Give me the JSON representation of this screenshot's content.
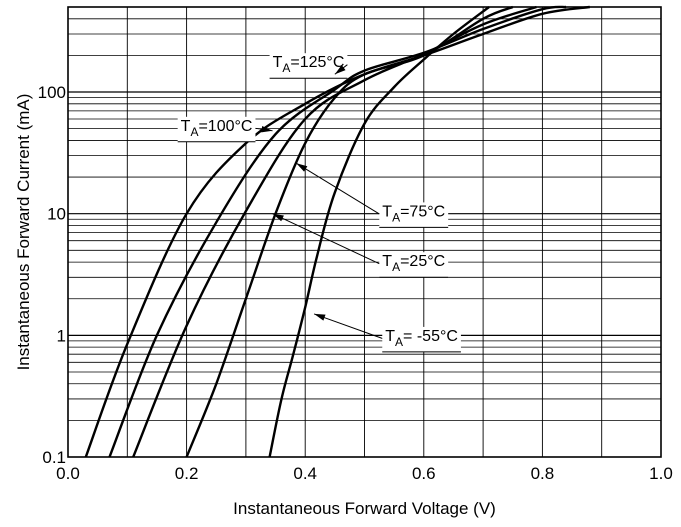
{
  "chart_data": {
    "type": "line",
    "xlabel": "Instantaneous Forward Voltage (V)",
    "ylabel": "Instantaneous Forward Current (mA)",
    "xlim": [
      0.0,
      1.0
    ],
    "ylim": [
      0.1,
      500
    ],
    "y_scale": "log",
    "grid": true,
    "legend": "inline annotations with arrows",
    "x_ticks": [
      {
        "value": 0.0,
        "label": "0.0"
      },
      {
        "value": 0.2,
        "label": "0.2"
      },
      {
        "value": 0.4,
        "label": "0.4"
      },
      {
        "value": 0.6,
        "label": "0.6"
      },
      {
        "value": 0.8,
        "label": "0.8"
      },
      {
        "value": 1.0,
        "label": "1.0"
      }
    ],
    "y_ticks": [
      {
        "value": 0.1,
        "label": "0.1"
      },
      {
        "value": 1,
        "label": "1"
      },
      {
        "value": 10,
        "label": "10"
      },
      {
        "value": 100,
        "label": "100"
      }
    ],
    "series": [
      {
        "label_main": "T",
        "label_sub": "A",
        "label_rest": "=125°C",
        "x": [
          0.03,
          0.1,
          0.2,
          0.3,
          0.4,
          0.5,
          0.6,
          0.7,
          0.8,
          0.88
        ],
        "y": [
          0.1,
          0.85,
          10,
          38,
          80,
          140,
          200,
          300,
          440,
          500
        ],
        "label_at": [
          0.345,
          160
        ],
        "arrow_to": [
          0.45,
          140
        ]
      },
      {
        "label_main": "T",
        "label_sub": "A",
        "label_rest": "=100°C",
        "x": [
          0.07,
          0.15,
          0.25,
          0.35,
          0.45,
          0.5,
          0.6,
          0.7,
          0.8,
          0.84
        ],
        "y": [
          0.1,
          1.0,
          8.5,
          45,
          105,
          150,
          210,
          330,
          480,
          500
        ],
        "label_at": [
          0.19,
          48
        ],
        "arrow_to": [
          0.345,
          48
        ]
      },
      {
        "label_main": "T",
        "label_sub": "A",
        "label_rest": "=75°C",
        "x": [
          0.11,
          0.2,
          0.3,
          0.4,
          0.5,
          0.6,
          0.7,
          0.79
        ],
        "y": [
          0.1,
          1.2,
          10.5,
          60,
          125,
          205,
          360,
          500
        ],
        "label_at": [
          0.53,
          9.5
        ],
        "arrow_to": [
          0.385,
          26
        ]
      },
      {
        "label_main": "T",
        "label_sub": "A",
        "label_rest": "=25°C",
        "x": [
          0.2,
          0.25,
          0.3,
          0.35,
          0.4,
          0.45,
          0.5,
          0.6,
          0.7,
          0.75
        ],
        "y": [
          0.1,
          0.4,
          2.0,
          10.0,
          38,
          90,
          140,
          200,
          400,
          500
        ],
        "label_at": [
          0.53,
          3.7
        ],
        "arrow_to": [
          0.345,
          10
        ]
      },
      {
        "label_main": "T",
        "label_sub": "A",
        "label_rest": "= -55°C",
        "x": [
          0.34,
          0.36,
          0.38,
          0.4,
          0.42,
          0.45,
          0.5,
          0.55,
          0.6,
          0.65,
          0.71
        ],
        "y": [
          0.1,
          0.3,
          0.7,
          1.7,
          4.5,
          15,
          55,
          110,
          185,
          300,
          500
        ],
        "label_at": [
          0.535,
          0.9
        ],
        "arrow_to": [
          0.415,
          1.5
        ]
      }
    ]
  }
}
